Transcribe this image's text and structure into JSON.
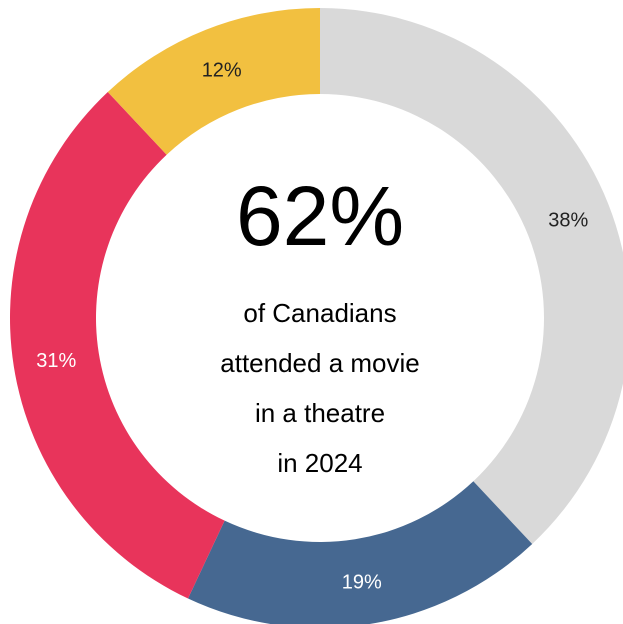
{
  "chart_data": {
    "type": "pie",
    "donut": true,
    "slices": [
      {
        "label": "38%",
        "value": 38,
        "color": "#d9d9d9"
      },
      {
        "label": "19%",
        "value": 19,
        "color": "#466891"
      },
      {
        "label": "31%",
        "value": 31,
        "color": "#e8345b"
      },
      {
        "label": "12%",
        "value": 12,
        "color": "#f2c040"
      }
    ],
    "center": {
      "value": "62%",
      "lines": [
        "of Canadians",
        "attended a movie",
        "in a theatre",
        "in 2024"
      ]
    }
  }
}
